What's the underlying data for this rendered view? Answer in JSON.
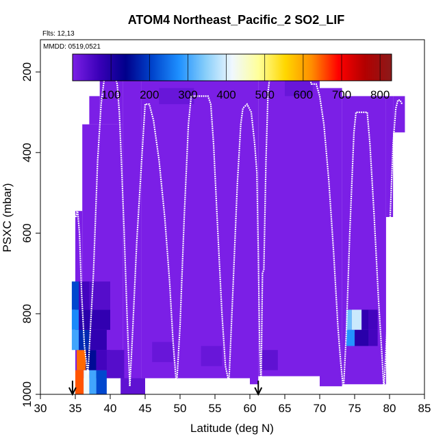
{
  "chart_data": {
    "type": "heatmap",
    "title": "ATOM4 Northeast_Pacific_2 SO2_LIF",
    "flights_label": "Flts: 12,13",
    "dates_label": "MMDD: 0519,0521",
    "xlabel": "Latitude (deg N)",
    "ylabel": "PSXC (mbar)",
    "xlim": [
      30,
      85
    ],
    "ylim": [
      1000,
      120
    ],
    "y_inverted": true,
    "x_ticks": [
      30,
      35,
      40,
      45,
      50,
      55,
      60,
      65,
      70,
      75,
      80,
      85
    ],
    "y_ticks": [
      200,
      400,
      600,
      800,
      1000
    ],
    "colorbar": {
      "range": [
        0,
        830
      ],
      "ticks": [
        100,
        200,
        300,
        400,
        500,
        600,
        700,
        800
      ],
      "colors": [
        "#7b1fe6",
        "#3a00b8",
        "#00008b",
        "#0044cc",
        "#1e90ff",
        "#87cefa",
        "#f0f8ff",
        "#ffff99",
        "#ffd700",
        "#ff8c00",
        "#ff0000",
        "#b20000",
        "#8b1a1a"
      ]
    },
    "arrows": [
      {
        "lat": 34.6,
        "label": ""
      },
      {
        "lat": 61.2,
        "label": ""
      }
    ],
    "cells": [
      {
        "lat0": 35.0,
        "lat1": 36.2,
        "p0": 940,
        "p1": 1000,
        "value": 650
      },
      {
        "lat0": 36.2,
        "lat1": 37.0,
        "p0": 940,
        "p1": 1000,
        "value": 420
      },
      {
        "lat0": 37.0,
        "lat1": 38.0,
        "p0": 940,
        "p1": 1000,
        "value": 300
      },
      {
        "lat0": 38.0,
        "lat1": 39.5,
        "p0": 940,
        "p1": 1000,
        "value": 210
      },
      {
        "lat0": 35.2,
        "lat1": 36.5,
        "p0": 890,
        "p1": 940,
        "value": 640
      },
      {
        "lat0": 36.5,
        "lat1": 38.0,
        "p0": 890,
        "p1": 940,
        "value": 150
      },
      {
        "lat0": 38.0,
        "lat1": 40.0,
        "p0": 890,
        "p1": 940,
        "value": 60
      },
      {
        "lat0": 34.5,
        "lat1": 35.5,
        "p0": 840,
        "p1": 890,
        "value": 300
      },
      {
        "lat0": 35.5,
        "lat1": 37.0,
        "p0": 840,
        "p1": 890,
        "value": 180
      },
      {
        "lat0": 37.0,
        "lat1": 39.5,
        "p0": 840,
        "p1": 890,
        "value": 80
      },
      {
        "lat0": 34.5,
        "lat1": 35.5,
        "p0": 790,
        "p1": 840,
        "value": 270
      },
      {
        "lat0": 35.5,
        "lat1": 37.0,
        "p0": 790,
        "p1": 840,
        "value": 90
      },
      {
        "lat0": 37.0,
        "lat1": 40.0,
        "p0": 790,
        "p1": 840,
        "value": 80
      },
      {
        "lat0": 34.5,
        "lat1": 35.5,
        "p0": 720,
        "p1": 790,
        "value": 210
      },
      {
        "lat0": 35.5,
        "lat1": 37.0,
        "p0": 720,
        "p1": 790,
        "value": 60
      },
      {
        "lat0": 37.0,
        "lat1": 40.0,
        "p0": 720,
        "p1": 790,
        "value": 40
      },
      {
        "lat0": 73.8,
        "lat1": 74.6,
        "p0": 790,
        "p1": 840,
        "value": 330
      },
      {
        "lat0": 74.6,
        "lat1": 76.0,
        "p0": 790,
        "p1": 840,
        "value": 390
      },
      {
        "lat0": 76.0,
        "lat1": 77.0,
        "p0": 790,
        "p1": 840,
        "value": 80
      },
      {
        "lat0": 77.0,
        "lat1": 78.3,
        "p0": 790,
        "p1": 840,
        "value": 60
      },
      {
        "lat0": 73.8,
        "lat1": 75.0,
        "p0": 840,
        "p1": 880,
        "value": 280
      },
      {
        "lat0": 75.0,
        "lat1": 77.0,
        "p0": 840,
        "p1": 880,
        "value": 90
      },
      {
        "lat0": 77.0,
        "lat1": 78.3,
        "p0": 840,
        "p1": 880,
        "value": 60
      },
      {
        "lat0": 39.5,
        "lat1": 42.0,
        "p0": 890,
        "p1": 960,
        "value": 40
      },
      {
        "lat0": 41.5,
        "lat1": 45.0,
        "p0": 960,
        "p1": 1000,
        "value": 30
      },
      {
        "lat0": 61.5,
        "lat1": 64.0,
        "p0": 890,
        "p1": 940,
        "value": 30
      },
      {
        "lat0": 53.0,
        "lat1": 56.0,
        "p0": 880,
        "p1": 930,
        "value": 20
      },
      {
        "lat0": 46.0,
        "lat1": 49.0,
        "p0": 870,
        "p1": 920,
        "value": 20
      },
      {
        "lat0": 47.0,
        "lat1": 52.0,
        "p0": 240,
        "p1": 280,
        "value": 20
      },
      {
        "lat0": 65.0,
        "lat1": 69.0,
        "p0": 220,
        "p1": 260,
        "value": 20
      }
    ],
    "flight_track": [
      [
        35.1,
        560
      ],
      [
        35.3,
        540
      ],
      [
        35.6,
        600
      ],
      [
        35.9,
        750
      ],
      [
        36.3,
        880
      ],
      [
        36.8,
        950
      ],
      [
        37.6,
        700
      ],
      [
        38.2,
        420
      ],
      [
        38.7,
        280
      ],
      [
        39.2,
        210
      ],
      [
        39.6,
        200
      ],
      [
        40.5,
        200
      ],
      [
        41.0,
        230
      ],
      [
        41.3,
        300
      ],
      [
        41.6,
        420
      ],
      [
        42.0,
        600
      ],
      [
        42.4,
        800
      ],
      [
        42.8,
        980
      ],
      [
        43.2,
        850
      ],
      [
        43.8,
        620
      ],
      [
        44.5,
        420
      ],
      [
        45.0,
        280
      ],
      [
        45.6,
        280
      ],
      [
        46.2,
        320
      ],
      [
        47.0,
        420
      ],
      [
        47.8,
        560
      ],
      [
        48.5,
        720
      ],
      [
        49.0,
        870
      ],
      [
        49.5,
        980
      ],
      [
        50.0,
        830
      ],
      [
        50.6,
        560
      ],
      [
        51.2,
        330
      ],
      [
        51.6,
        260
      ],
      [
        54.0,
        260
      ],
      [
        54.4,
        280
      ],
      [
        54.8,
        380
      ],
      [
        55.3,
        560
      ],
      [
        56.0,
        800
      ],
      [
        56.5,
        930
      ],
      [
        57.0,
        970
      ],
      [
        57.6,
        730
      ],
      [
        58.2,
        480
      ],
      [
        58.7,
        330
      ],
      [
        59.0,
        290
      ],
      [
        59.6,
        280
      ],
      [
        60.2,
        300
      ],
      [
        60.7,
        380
      ],
      [
        61.0,
        450
      ],
      [
        61.2,
        640
      ],
      [
        61.4,
        880
      ],
      [
        61.6,
        980
      ],
      [
        61.8,
        700
      ],
      [
        62.0,
        690
      ],
      [
        62.3,
        420
      ],
      [
        62.6,
        250
      ],
      [
        63.0,
        190
      ],
      [
        68.0,
        190
      ],
      [
        68.5,
        210
      ],
      [
        68.8,
        230
      ],
      [
        69.5,
        230
      ],
      [
        70.0,
        260
      ],
      [
        70.6,
        330
      ],
      [
        71.3,
        470
      ],
      [
        72.0,
        650
      ],
      [
        72.6,
        830
      ],
      [
        73.0,
        920
      ],
      [
        73.4,
        990
      ],
      [
        73.8,
        850
      ],
      [
        74.3,
        600
      ],
      [
        74.9,
        350
      ],
      [
        75.2,
        300
      ],
      [
        76.8,
        300
      ],
      [
        77.2,
        380
      ],
      [
        77.8,
        560
      ],
      [
        78.4,
        760
      ],
      [
        78.9,
        900
      ],
      [
        79.2,
        990
      ],
      [
        79.6,
        850
      ],
      [
        80.0,
        600
      ],
      [
        80.5,
        380
      ],
      [
        80.9,
        290
      ],
      [
        81.2,
        270
      ],
      [
        81.5,
        270
      ],
      [
        81.8,
        280
      ]
    ]
  }
}
